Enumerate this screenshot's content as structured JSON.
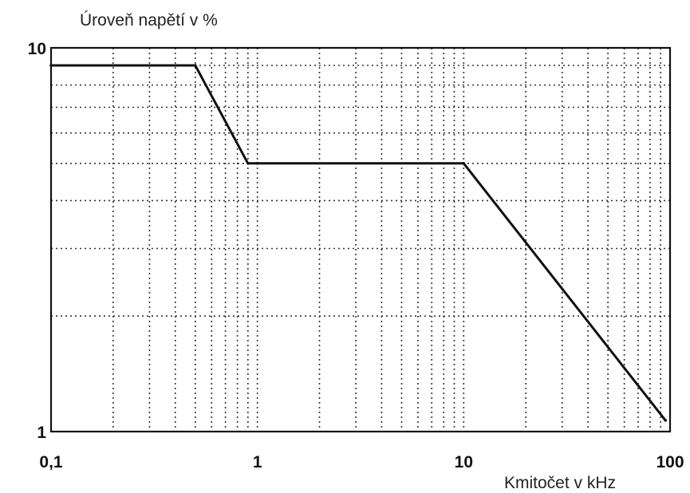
{
  "chart_data": {
    "type": "line",
    "ylabel": "Úroveň napětí v %",
    "xlabel": "Kmitočet v kHz",
    "x_scale": "log",
    "y_scale": "log",
    "xlim": [
      0.1,
      100
    ],
    "ylim": [
      1,
      10
    ],
    "x_ticks": [
      {
        "value": 0.1,
        "label": "0,1"
      },
      {
        "value": 1,
        "label": "1"
      },
      {
        "value": 10,
        "label": "10"
      },
      {
        "value": 100,
        "label": "100"
      }
    ],
    "y_ticks": [
      {
        "value": 1,
        "label": "1"
      },
      {
        "value": 10,
        "label": "10"
      }
    ],
    "grid": true,
    "grid_style": "dotted",
    "series": [
      {
        "x": [
          0.1,
          0.5,
          0.9,
          1,
          10,
          95
        ],
        "y": [
          9,
          9,
          5,
          5,
          5,
          1.07
        ]
      }
    ],
    "colors": {
      "line": "#111111",
      "grid": "#333333",
      "axis": "#111111"
    }
  }
}
